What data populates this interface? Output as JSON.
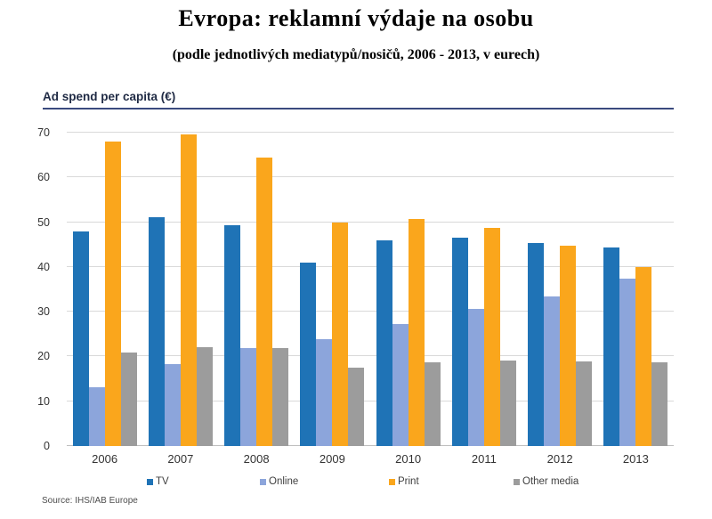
{
  "title": "Evropa: reklamní výdaje na osobu",
  "subtitle": "(podle jednotlivých mediatypů/nosičů, 2006 - 2013, v eurech)",
  "chart_header": "Ad spend per capita (€)",
  "source": "Source: IHS/IAB Europe",
  "chart_data": {
    "type": "bar",
    "title": "Ad spend per capita (€)",
    "categories": [
      "2006",
      "2007",
      "2008",
      "2009",
      "2010",
      "2011",
      "2012",
      "2013"
    ],
    "series": [
      {
        "name": "TV",
        "color": "#1f73b6",
        "values": [
          48.0,
          51.2,
          49.4,
          41.0,
          45.9,
          46.6,
          45.3,
          44.3
        ]
      },
      {
        "name": "Online",
        "color": "#8ca5db",
        "values": [
          13.2,
          18.2,
          21.8,
          23.9,
          27.2,
          30.7,
          33.5,
          37.4
        ]
      },
      {
        "name": "Print",
        "color": "#faa61c",
        "values": [
          68.0,
          69.6,
          64.5,
          50.0,
          50.7,
          48.7,
          44.7,
          40.0
        ]
      },
      {
        "name": "Other media",
        "color": "#9c9c9c",
        "values": [
          20.8,
          22.0,
          21.9,
          17.5,
          18.7,
          19.0,
          18.9,
          18.6
        ]
      }
    ],
    "xlabel": "",
    "ylabel": "Ad spend per capita (€)",
    "ylim": [
      0,
      70
    ],
    "ytick_interval": 10,
    "grid": true,
    "legend_position": "bottom"
  }
}
